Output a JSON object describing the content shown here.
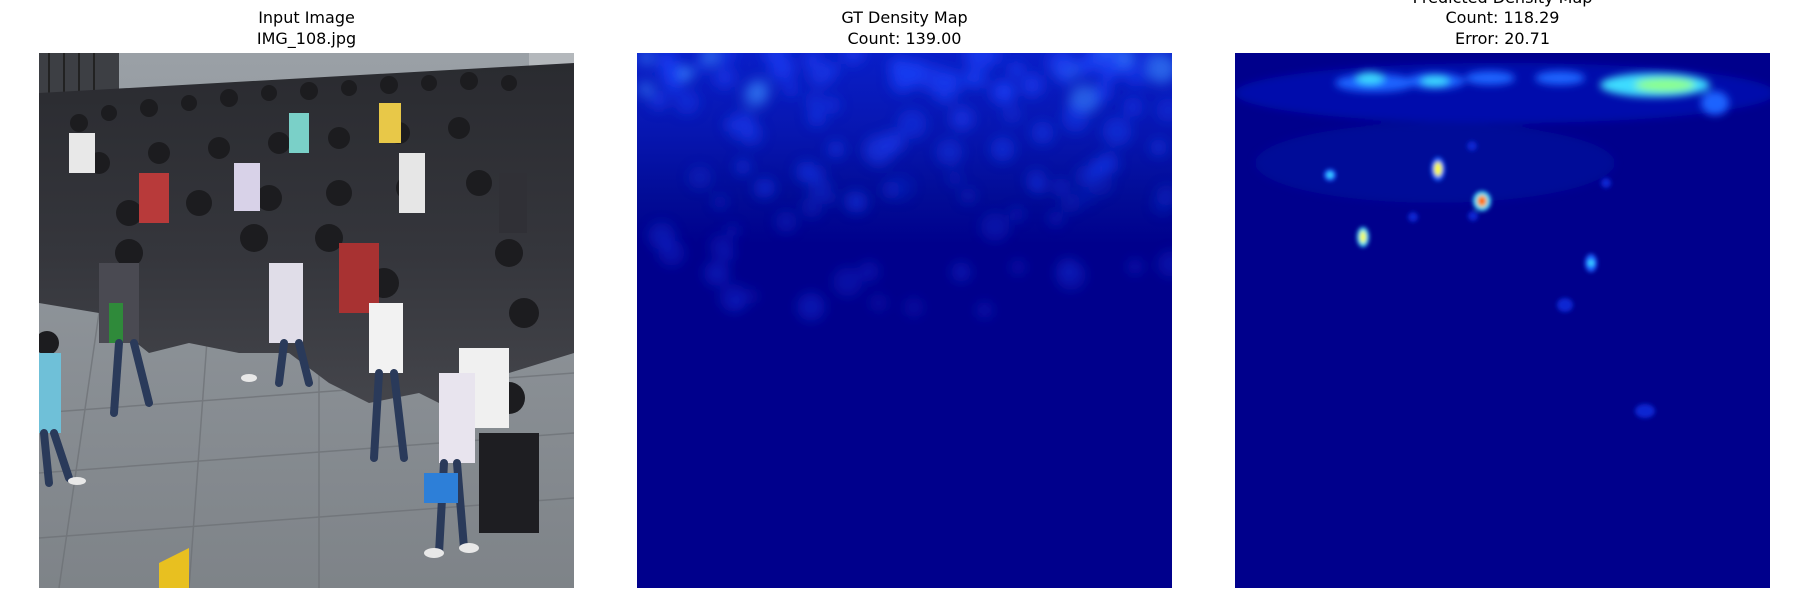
{
  "panels": [
    {
      "title_line_1": "Input Image",
      "title_line_2": "IMG_108.jpg"
    },
    {
      "title_line_1": "GT Density Map",
      "title_line_2": "Count: 139.00"
    },
    {
      "title_line_1": "Predicted Density Map",
      "title_line_2": "Count: 118.29",
      "title_line_3": "Error: 20.71"
    }
  ],
  "colors": {
    "background": "#ffffff",
    "density_base": "#00008c",
    "density_low": "#0a28d2",
    "density_mid": "#1e64ff",
    "density_high": "#3cdcff",
    "density_peak": "#ffff32",
    "density_max": "#ff1e00",
    "pavement": "#8c9196",
    "crowd": "#2d2d32"
  }
}
